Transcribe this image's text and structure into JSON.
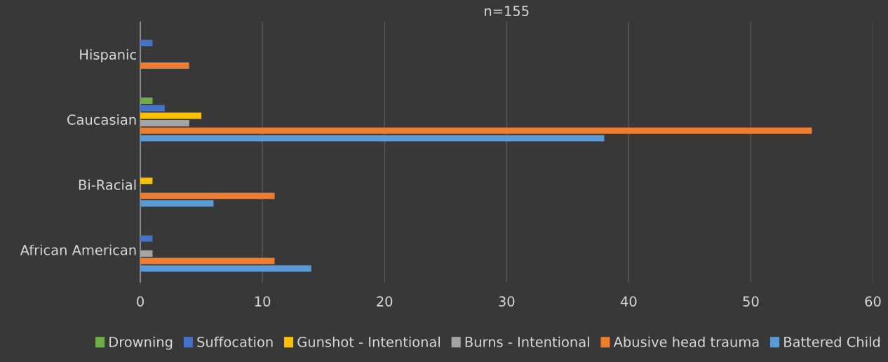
{
  "chart_data": {
    "type": "bar",
    "orientation": "horizontal",
    "title": "n=155",
    "categories": [
      "Hispanic",
      "Caucasian",
      "Bi-Racial",
      "African American"
    ],
    "series": [
      {
        "name": "Drowning",
        "color": "#70ad47",
        "values": [
          0,
          1,
          0,
          0
        ]
      },
      {
        "name": "Suffocation",
        "color": "#4472c4",
        "values": [
          1,
          2,
          0,
          1
        ]
      },
      {
        "name": "Gunshot - Intentional",
        "color": "#ffc000",
        "values": [
          0,
          5,
          1,
          0
        ]
      },
      {
        "name": "Burns - Intentional",
        "color": "#a5a5a5",
        "values": [
          0,
          4,
          0,
          1
        ]
      },
      {
        "name": "Abusive head trauma",
        "color": "#ed7d31",
        "values": [
          4,
          55,
          11,
          11
        ]
      },
      {
        "name": "Battered Child",
        "color": "#5b9bd5",
        "values": [
          0,
          38,
          6,
          14
        ]
      }
    ],
    "xlim": [
      0,
      60
    ],
    "xticks": [
      0,
      10,
      20,
      30,
      40,
      50,
      60
    ],
    "grid": "x",
    "legend": "bottom"
  }
}
